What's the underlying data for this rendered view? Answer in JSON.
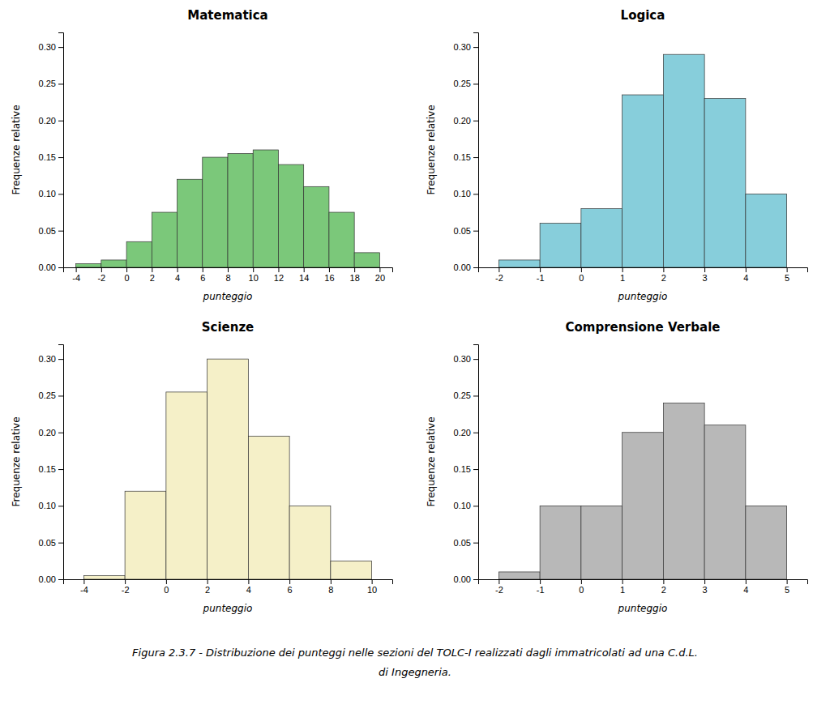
{
  "chart_data": [
    {
      "type": "histogram",
      "title": "Matematica",
      "color": "#7bc87a",
      "bins": [
        -4,
        -2,
        0,
        2,
        4,
        6,
        8,
        10,
        12,
        14,
        16,
        18,
        20
      ],
      "values": [
        0.005,
        0.01,
        0.035,
        0.075,
        0.12,
        0.15,
        0.155,
        0.16,
        0.14,
        0.11,
        0.075,
        0.02
      ],
      "xlim": [
        -5,
        21
      ],
      "xticks": [
        -4,
        -2,
        0,
        2,
        4,
        6,
        8,
        10,
        12,
        14,
        16,
        18,
        20
      ],
      "ylim": [
        0,
        0.32
      ],
      "yticks": [
        {
          "value": 0.0,
          "label": "0.00"
        },
        {
          "value": 0.05,
          "label": "0.05"
        },
        {
          "value": 0.1,
          "label": "0.10"
        },
        {
          "value": 0.15,
          "label": "0.15"
        },
        {
          "value": 0.2,
          "label": "0.20"
        },
        {
          "value": 0.25,
          "label": "0.25"
        },
        {
          "value": 0.3,
          "label": "0.30"
        }
      ],
      "x_label": "punteggio",
      "y_label": "Frequenze relative",
      "grid": false
    },
    {
      "type": "histogram",
      "title": "Logica",
      "color": "#87cedb",
      "bins": [
        -2,
        -1,
        0,
        1,
        2,
        3,
        4,
        5
      ],
      "values": [
        0.01,
        0.06,
        0.08,
        0.235,
        0.29,
        0.23,
        0.1
      ],
      "xlim": [
        -2.5,
        5.5
      ],
      "xticks": [
        -2,
        -1,
        0,
        1,
        2,
        3,
        4,
        5
      ],
      "ylim": [
        0,
        0.32
      ],
      "yticks": [
        {
          "value": 0.0,
          "label": "0.00"
        },
        {
          "value": 0.05,
          "label": "0.05"
        },
        {
          "value": 0.1,
          "label": "0.10"
        },
        {
          "value": 0.15,
          "label": "0.15"
        },
        {
          "value": 0.2,
          "label": "0.20"
        },
        {
          "value": 0.25,
          "label": "0.25"
        },
        {
          "value": 0.3,
          "label": "0.30"
        }
      ],
      "x_label": "punteggio",
      "y_label": "Frequenze relative",
      "grid": false
    },
    {
      "type": "histogram",
      "title": "Scienze",
      "color": "#f5f0c8",
      "bins": [
        -4,
        -2,
        0,
        2,
        4,
        6,
        8,
        10
      ],
      "values": [
        0.005,
        0.12,
        0.255,
        0.3,
        0.195,
        0.1,
        0.025
      ],
      "xlim": [
        -5,
        11
      ],
      "xticks": [
        -4,
        -2,
        0,
        2,
        4,
        6,
        8,
        10
      ],
      "ylim": [
        0,
        0.32
      ],
      "yticks": [
        {
          "value": 0.0,
          "label": "0.00"
        },
        {
          "value": 0.05,
          "label": "0.05"
        },
        {
          "value": 0.1,
          "label": "0.10"
        },
        {
          "value": 0.15,
          "label": "0.15"
        },
        {
          "value": 0.2,
          "label": "0.20"
        },
        {
          "value": 0.25,
          "label": "0.25"
        },
        {
          "value": 0.3,
          "label": "0.30"
        }
      ],
      "x_label": "punteggio",
      "y_label": "Frequenze relative",
      "grid": false
    },
    {
      "type": "histogram",
      "title": "Comprensione Verbale",
      "color": "#b8b8b8",
      "bins": [
        -2,
        -1,
        0,
        1,
        2,
        3,
        4,
        5
      ],
      "values": [
        0.01,
        0.1,
        0.1,
        0.2,
        0.24,
        0.21,
        0.1
      ],
      "xlim": [
        -2.5,
        5.5
      ],
      "xticks": [
        -2,
        -1,
        0,
        1,
        2,
        3,
        4,
        5
      ],
      "ylim": [
        0,
        0.32
      ],
      "yticks": [
        {
          "value": 0.0,
          "label": "0.00"
        },
        {
          "value": 0.05,
          "label": "0.05"
        },
        {
          "value": 0.1,
          "label": "0.10"
        },
        {
          "value": 0.15,
          "label": "0.15"
        },
        {
          "value": 0.2,
          "label": "0.20"
        },
        {
          "value": 0.25,
          "label": "0.25"
        },
        {
          "value": 0.3,
          "label": "0.30"
        }
      ],
      "x_label": "punteggio",
      "y_label": "Frequenze relative",
      "grid": false
    }
  ],
  "annotations": [
    "Figura 2.3.7 - Distribuzione dei punteggi nelle sezioni del TOLC-I realizzati dagli immatricolati ad una C.d.L.",
    "di Ingegneria."
  ]
}
